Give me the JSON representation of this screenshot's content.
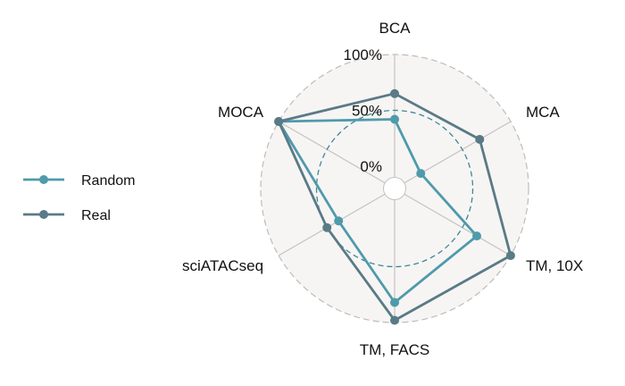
{
  "chart_data": {
    "type": "radar",
    "axes": [
      "BCA",
      "MCA",
      "TM, 10X",
      "TM, FACS",
      "sciATACseq",
      "MOCA"
    ],
    "radial_ticks": [
      "0%",
      "50%",
      "100%"
    ],
    "rlim": [
      -0.2,
      1.0
    ],
    "grid": true,
    "legend_position": "left",
    "series": [
      {
        "name": "Random",
        "color": "#4f9aab",
        "values": [
          0.42,
          0.07,
          0.65,
          0.82,
          0.38,
          1.0
        ]
      },
      {
        "name": "Real",
        "color": "#5a7a86",
        "values": [
          0.65,
          0.68,
          1.0,
          0.98,
          0.5,
          1.0
        ]
      }
    ]
  }
}
